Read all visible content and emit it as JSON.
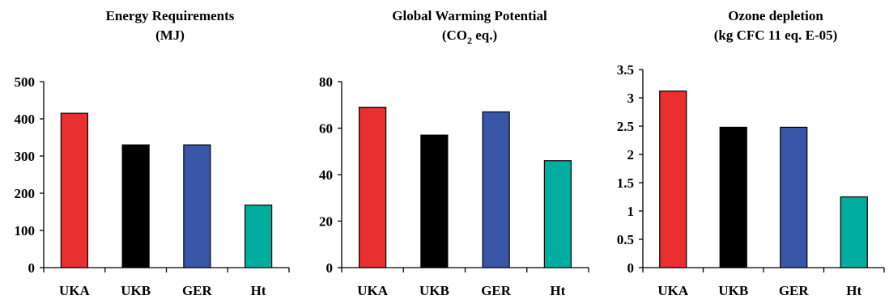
{
  "chart_data": [
    {
      "type": "bar",
      "title": "Energy Requirements",
      "subtitle": "(MJ)",
      "categories": [
        "UKA",
        "UKB",
        "GER",
        "Ht"
      ],
      "values": [
        415,
        330,
        330,
        168
      ],
      "colors": [
        "#e8302e",
        "#000000",
        "#3a56a8",
        "#00ad9f"
      ],
      "ylim": [
        0,
        500
      ],
      "yticks": [
        "0",
        "100",
        "200",
        "300",
        "400",
        "500"
      ],
      "xlabel": "",
      "ylabel": "",
      "grid": false,
      "legend": "none"
    },
    {
      "type": "bar",
      "title": "Global Warming Potential",
      "subtitle_main": "(CO",
      "subtitle_sub": "2",
      "subtitle_end": " eq.)",
      "categories": [
        "UKA",
        "UKB",
        "GER",
        "Ht"
      ],
      "values": [
        69,
        57,
        67,
        46
      ],
      "colors": [
        "#e8302e",
        "#000000",
        "#3a56a8",
        "#00ad9f"
      ],
      "ylim": [
        0,
        80
      ],
      "yticks": [
        "0",
        "20",
        "40",
        "60",
        "80"
      ],
      "xlabel": "",
      "ylabel": "",
      "grid": false,
      "legend": "none"
    },
    {
      "type": "bar",
      "title": "Ozone depletion",
      "subtitle": "(kg CFC 11 eq. E-05)",
      "categories": [
        "UKA",
        "UKB",
        "GER",
        "Ht"
      ],
      "values": [
        3.12,
        2.48,
        2.48,
        1.25
      ],
      "colors": [
        "#e8302e",
        "#000000",
        "#3a56a8",
        "#00ad9f"
      ],
      "ylim": [
        0,
        3.5
      ],
      "yticks": [
        "0",
        "0.5",
        "1",
        "1.5",
        "2",
        "2.5",
        "3",
        "3.5"
      ],
      "xlabel": "",
      "ylabel": "",
      "grid": false,
      "legend": "none"
    }
  ]
}
